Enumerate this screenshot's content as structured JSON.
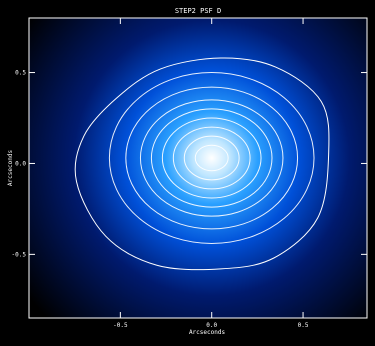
{
  "chart_data": {
    "type": "heatmap",
    "title": "STEP2 PSF D",
    "xlabel": "Arcseconds",
    "ylabel": "Arcseconds",
    "xlim": [
      -1.0,
      0.85
    ],
    "ylim": [
      -0.85,
      0.8
    ],
    "x_ticks": [
      {
        "value": -0.5,
        "label": "-0.5"
      },
      {
        "value": 0.0,
        "label": "0.0"
      },
      {
        "value": 0.5,
        "label": "0.5"
      }
    ],
    "y_ticks": [
      {
        "value": 0.5,
        "label": "0.5"
      },
      {
        "value": 0.0,
        "label": "0.0"
      },
      {
        "value": -0.5,
        "label": "-0.5"
      }
    ],
    "grid": false,
    "colormap": [
      "#000000",
      "#001a6e",
      "#0050d8",
      "#2aa0ff",
      "#ffffff"
    ],
    "contour_color": "#ffffff",
    "psf": {
      "center_x": 0.0,
      "center_y": 0.03,
      "contours": [
        {
          "rx": 0.09,
          "ry": 0.07
        },
        {
          "rx": 0.15,
          "ry": 0.12
        },
        {
          "rx": 0.21,
          "ry": 0.17
        },
        {
          "rx": 0.27,
          "ry": 0.22
        },
        {
          "rx": 0.33,
          "ry": 0.27
        },
        {
          "rx": 0.39,
          "ry": 0.32
        },
        {
          "rx": 0.47,
          "ry": 0.39
        },
        {
          "rx": 0.56,
          "ry": 0.47
        }
      ],
      "outer_contour": [
        [
          -0.52,
          0.36
        ],
        [
          -0.28,
          0.52
        ],
        [
          0.05,
          0.58
        ],
        [
          0.35,
          0.53
        ],
        [
          0.6,
          0.34
        ],
        [
          0.64,
          0.05
        ],
        [
          0.58,
          -0.3
        ],
        [
          0.34,
          -0.52
        ],
        [
          0.05,
          -0.58
        ],
        [
          -0.3,
          -0.56
        ],
        [
          -0.58,
          -0.4
        ],
        [
          -0.74,
          -0.1
        ],
        [
          -0.7,
          0.15
        ]
      ]
    }
  }
}
